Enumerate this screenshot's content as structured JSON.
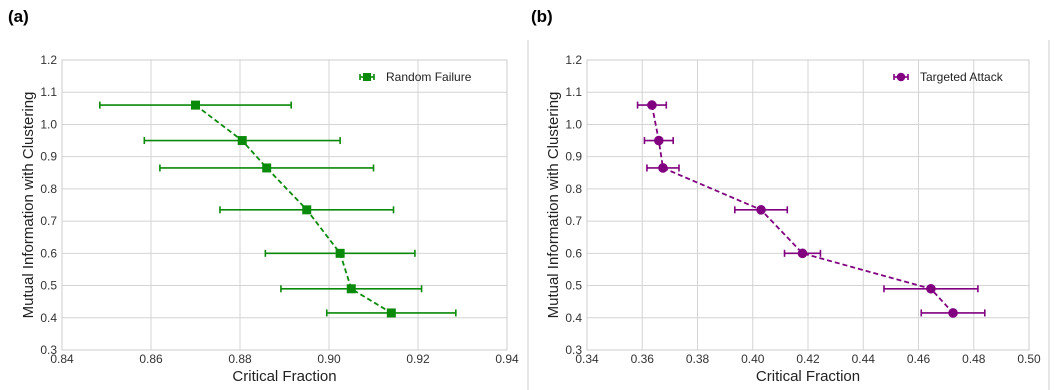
{
  "chart_data": [
    {
      "type": "scatter",
      "panel_label": "(a)",
      "xlabel": "Critical Fraction",
      "ylabel": "Mutual Information with Clustering",
      "xlim": [
        0.84,
        0.94
      ],
      "ylim": [
        0.3,
        1.2
      ],
      "xticks": [
        "0.84",
        "0.86",
        "0.88",
        "0.90",
        "0.92",
        "0.94"
      ],
      "yticks": [
        "0.3",
        "0.4",
        "0.5",
        "0.6",
        "0.7",
        "0.8",
        "0.9",
        "1.0",
        "1.1",
        "1.2"
      ],
      "grid": true,
      "legend_position": "top-right",
      "series": [
        {
          "name": "Random Failure",
          "color": "#0a8a0a",
          "marker": "square",
          "line": "dashed",
          "x": [
            0.87,
            0.8805,
            0.886,
            0.895,
            0.9025,
            0.905,
            0.914
          ],
          "y": [
            1.06,
            0.95,
            0.865,
            0.735,
            0.6,
            0.49,
            0.415
          ],
          "xerr": [
            0.0215,
            0.022,
            0.024,
            0.0195,
            0.0168,
            0.0158,
            0.0145
          ]
        }
      ]
    },
    {
      "type": "scatter",
      "panel_label": "(b)",
      "xlabel": "Critical Fraction",
      "ylabel": "Mutual Information with Clustering",
      "xlim": [
        0.34,
        0.5
      ],
      "ylim": [
        0.3,
        1.2
      ],
      "xticks": [
        "0.34",
        "0.36",
        "0.38",
        "0.40",
        "0.42",
        "0.44",
        "0.46",
        "0.48",
        "0.50"
      ],
      "yticks": [
        "0.3",
        "0.4",
        "0.5",
        "0.6",
        "0.7",
        "0.8",
        "0.9",
        "1.0",
        "1.1",
        "1.2"
      ],
      "grid": true,
      "legend_position": "top-right",
      "series": [
        {
          "name": "Targeted Attack",
          "color": "#800080",
          "marker": "circle",
          "line": "dashed",
          "x": [
            0.3635,
            0.366,
            0.3675,
            0.403,
            0.418,
            0.4645,
            0.4725
          ],
          "y": [
            1.06,
            0.95,
            0.865,
            0.735,
            0.6,
            0.49,
            0.415
          ],
          "xerr": [
            0.0052,
            0.0052,
            0.0058,
            0.0095,
            0.0065,
            0.017,
            0.0115
          ]
        }
      ]
    }
  ]
}
